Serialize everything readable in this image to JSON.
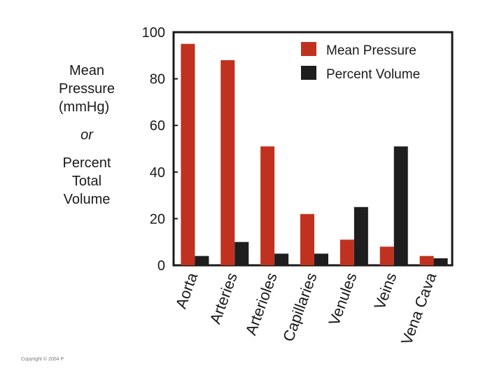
{
  "chart_data": {
    "type": "bar",
    "categories": [
      "Aorta",
      "Arteries",
      "Arterioles",
      "Capillaries",
      "Venules",
      "Veins",
      "Vena Cava"
    ],
    "series": [
      {
        "name": "Mean Pressure",
        "color": "#c0321f",
        "values": [
          95,
          88,
          51,
          22,
          11,
          8,
          4
        ]
      },
      {
        "name": "Percent Volume",
        "color": "#1e1e1e",
        "values": [
          4,
          10,
          5,
          5,
          25,
          51,
          3
        ]
      }
    ],
    "ylim": [
      0,
      100
    ],
    "yticks": [
      "0",
      "20",
      "40",
      "60",
      "80",
      "100"
    ],
    "ylabel": {
      "line1": "Mean",
      "line2": "Pressure",
      "line3": "(mmHg)",
      "or": "or",
      "line4": "Percent",
      "line5": "Total",
      "line6": "Volume"
    },
    "legend_position": "top-right",
    "grid": false
  },
  "copyright": "Copyright © 2004 P"
}
